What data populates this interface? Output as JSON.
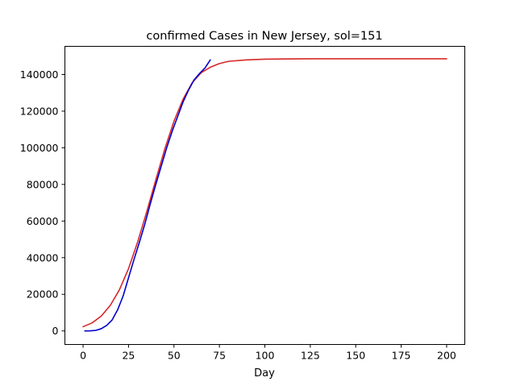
{
  "chart_data": {
    "type": "line",
    "title": "confirmed Cases in New Jersey, sol=151",
    "xlabel": "Day",
    "ylabel": "",
    "xlim": [
      -10,
      210
    ],
    "ylim": [
      -7400,
      155400
    ],
    "xticks": [
      0,
      25,
      50,
      75,
      100,
      125,
      150,
      175,
      200
    ],
    "xtick_labels": [
      "0",
      "25",
      "50",
      "75",
      "100",
      "125",
      "150",
      "175",
      "200"
    ],
    "yticks": [
      0,
      20000,
      40000,
      60000,
      80000,
      100000,
      120000,
      140000
    ],
    "ytick_labels": [
      "0",
      "20000",
      "40000",
      "60000",
      "80000",
      "100000",
      "120000",
      "140000"
    ],
    "grid": false,
    "legend": "none",
    "series": [
      {
        "color": "#d62728",
        "style": "line",
        "x": [
          0,
          5,
          10,
          15,
          20,
          25,
          30,
          35,
          40,
          45,
          50,
          55,
          60,
          65,
          70,
          75,
          80,
          90,
          100,
          110,
          125,
          150,
          175,
          200
        ],
        "y": [
          2300,
          4400,
          8100,
          14000,
          22500,
          34000,
          48500,
          65000,
          82500,
          99500,
          114500,
          126500,
          135500,
          141000,
          144000,
          146000,
          147200,
          148000,
          148400,
          148500,
          148600,
          148600,
          148600,
          148600
        ]
      },
      {
        "color": "#0000cc",
        "style": "line",
        "x": [
          1,
          4,
          7,
          10,
          13,
          16,
          19,
          22,
          25,
          28,
          31,
          34,
          37,
          40,
          43,
          46,
          49,
          52,
          55,
          58,
          61,
          64,
          67,
          70
        ],
        "y": [
          0,
          50,
          300,
          1200,
          3000,
          6000,
          11500,
          19000,
          29000,
          39000,
          48500,
          58500,
          69500,
          80000,
          90000,
          100000,
          109000,
          117000,
          125000,
          131500,
          137000,
          140500,
          143500,
          148000
        ]
      }
    ]
  }
}
